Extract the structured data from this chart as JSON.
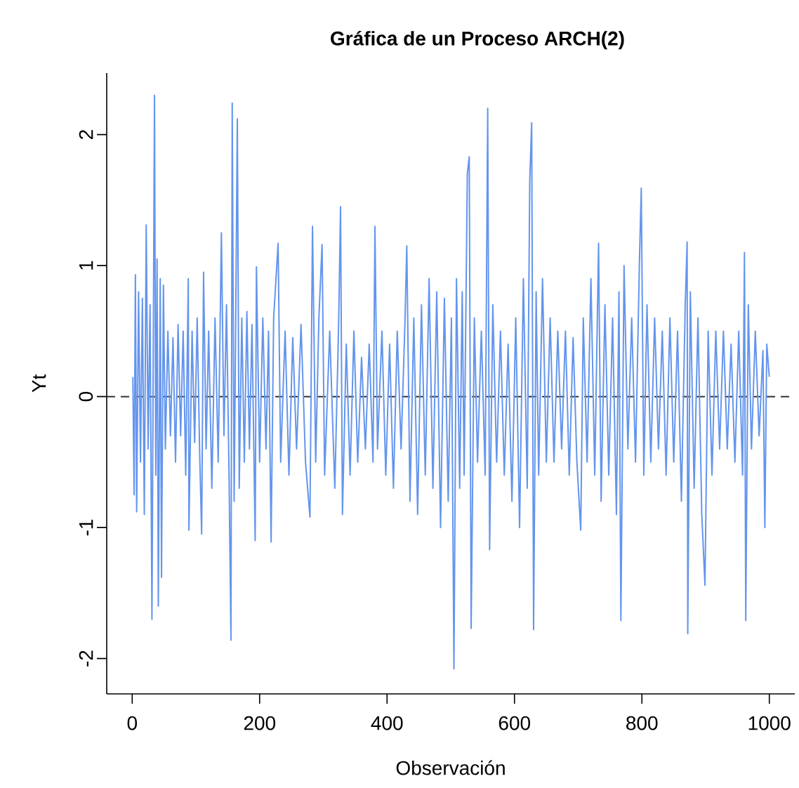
{
  "chart_data": {
    "type": "line",
    "title": "Gráfica de un Proceso ARCH(2)",
    "xlabel": "Observación",
    "ylabel": "Yt",
    "x": [
      1,
      3,
      5,
      7,
      10,
      13,
      16,
      19,
      22,
      25,
      28,
      31,
      35,
      37,
      39,
      41,
      44,
      46,
      49,
      52,
      56,
      60,
      64,
      68,
      72,
      76,
      80,
      84,
      88,
      89,
      94,
      98,
      102,
      106,
      109,
      112,
      116,
      120,
      125,
      130,
      135,
      140,
      144,
      148,
      152,
      155,
      157,
      160,
      163,
      165,
      168,
      172,
      176,
      180,
      184,
      188,
      193,
      195,
      200,
      205,
      210,
      214,
      218,
      222,
      229,
      233,
      240,
      246,
      252,
      258,
      265,
      272,
      279,
      283,
      288,
      293,
      298,
      302,
      310,
      318,
      324,
      327,
      330,
      336,
      342,
      348,
      354,
      360,
      366,
      372,
      378,
      381,
      385,
      392,
      398,
      404,
      410,
      416,
      422,
      428,
      431,
      436,
      442,
      448,
      454,
      460,
      466,
      472,
      478,
      484,
      490,
      496,
      501,
      505,
      509,
      514,
      518,
      521,
      526,
      529,
      532,
      537,
      542,
      548,
      554,
      558,
      561,
      566,
      572,
      578,
      584,
      590,
      596,
      602,
      608,
      614,
      620,
      624,
      627,
      630,
      634,
      638,
      644,
      650,
      656,
      662,
      668,
      674,
      680,
      686,
      692,
      698,
      704,
      708,
      714,
      720,
      726,
      732,
      736,
      742,
      748,
      754,
      760,
      764,
      767,
      772,
      778,
      784,
      790,
      796,
      799,
      803,
      808,
      814,
      820,
      826,
      832,
      838,
      844,
      850,
      856,
      862,
      868,
      871,
      872,
      876,
      882,
      888,
      894,
      899,
      904,
      910,
      916,
      922,
      928,
      934,
      940,
      946,
      952,
      958,
      961,
      963,
      967,
      972,
      978,
      984,
      990,
      993,
      996,
      1000
    ],
    "series": [
      {
        "color": "#6495ed",
        "values": [
          0.15,
          -0.75,
          0.93,
          -0.88,
          0.8,
          -0.5,
          0.75,
          -0.9,
          1.31,
          -0.4,
          0.7,
          -1.7,
          2.3,
          -0.6,
          1.05,
          -1.6,
          0.9,
          -1.38,
          0.85,
          -0.4,
          0.5,
          -0.3,
          0.45,
          -0.5,
          0.55,
          -0.3,
          0.5,
          -0.6,
          0.9,
          -1.02,
          0.5,
          -0.35,
          0.6,
          -0.45,
          -1.05,
          0.95,
          -0.4,
          0.5,
          -0.7,
          0.6,
          -0.5,
          1.25,
          -0.3,
          0.7,
          -0.6,
          -1.86,
          2.24,
          -0.8,
          0.9,
          2.12,
          -0.7,
          0.6,
          -0.5,
          0.65,
          -0.4,
          0.55,
          -1.1,
          0.99,
          -0.5,
          0.6,
          -0.4,
          0.5,
          -1.11,
          0.6,
          1.17,
          -0.5,
          0.5,
          -0.6,
          0.45,
          -0.4,
          0.55,
          -0.5,
          -0.92,
          1.3,
          -0.5,
          0.6,
          1.16,
          -0.6,
          0.5,
          -0.7,
          0.55,
          1.45,
          -0.9,
          0.4,
          -0.6,
          0.5,
          -0.5,
          0.3,
          -0.4,
          0.4,
          -0.5,
          1.3,
          -0.4,
          0.5,
          -0.6,
          0.4,
          -0.7,
          0.5,
          -0.4,
          0.55,
          1.15,
          -0.8,
          0.6,
          -0.9,
          0.7,
          -0.6,
          0.9,
          -0.7,
          0.8,
          -1.0,
          0.75,
          -0.8,
          0.6,
          -2.08,
          0.9,
          -0.7,
          0.8,
          -0.6,
          1.7,
          1.83,
          -1.77,
          0.6,
          -0.5,
          0.5,
          -0.6,
          2.2,
          -1.17,
          0.7,
          -0.5,
          0.5,
          -0.6,
          0.4,
          -0.8,
          0.6,
          -1.0,
          0.9,
          -0.7,
          1.65,
          2.09,
          -1.78,
          0.8,
          -0.6,
          0.9,
          -0.5,
          0.6,
          -0.5,
          0.5,
          -0.4,
          0.5,
          -0.6,
          0.45,
          -0.5,
          -1.02,
          0.6,
          -0.5,
          0.9,
          -0.6,
          1.17,
          -0.8,
          0.7,
          -0.6,
          0.6,
          -0.9,
          0.8,
          -1.71,
          1.0,
          -0.4,
          0.6,
          -0.5,
          1.0,
          1.59,
          -0.6,
          0.7,
          -0.5,
          0.6,
          -0.4,
          0.5,
          -0.6,
          0.6,
          -0.5,
          0.5,
          -0.8,
          0.7,
          1.18,
          -1.81,
          0.8,
          -0.7,
          0.6,
          -0.9,
          -1.44,
          0.5,
          -0.6,
          0.5,
          -0.4,
          0.5,
          -0.4,
          0.4,
          -0.5,
          0.5,
          -0.6,
          1.1,
          -1.71,
          0.7,
          -0.4,
          0.5,
          -0.3,
          0.35,
          -1.0,
          0.4,
          0.15
        ]
      }
    ],
    "xlim": [
      -40,
      1040
    ],
    "ylim": [
      -2.27,
      2.47
    ],
    "xticks": [
      0,
      200,
      400,
      600,
      800,
      1000
    ],
    "yticks": [
      -2,
      -1,
      0,
      1,
      2
    ],
    "ref_lines": [
      {
        "axis": "y",
        "value": 0,
        "line_style": "dashed",
        "color": "#333333"
      }
    ]
  }
}
